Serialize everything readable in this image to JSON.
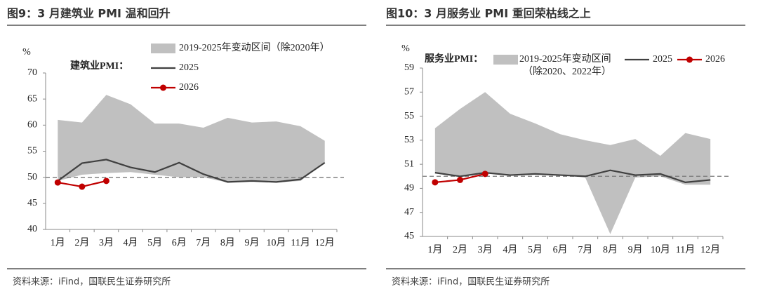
{
  "chart_data": [
    {
      "type": "range_line",
      "title": "图9：3 月建筑业 PMI 温和回升",
      "y_unit": "%",
      "series_label": "建筑业PMI：",
      "categories": [
        "1月",
        "2月",
        "3月",
        "4月",
        "5月",
        "6月",
        "7月",
        "8月",
        "9月",
        "10月",
        "11月",
        "12月"
      ],
      "band": {
        "name": "2019-2025年变动区间（除2020年）",
        "color": "#c0c0c0",
        "high": [
          61,
          60.5,
          65.8,
          64,
          60.3,
          60.3,
          59.5,
          61.4,
          60.5,
          60.7,
          59.8,
          57
        ],
        "low": [
          49.3,
          50.5,
          50.8,
          51,
          50.5,
          50,
          50,
          49,
          49.2,
          49,
          49.3,
          52.8
        ]
      },
      "series": [
        {
          "name": "2025",
          "color": "#404040",
          "values": [
            49.3,
            52.7,
            53.4,
            51.9,
            51,
            52.8,
            50.6,
            49.1,
            49.3,
            49.1,
            49.6,
            52.8
          ]
        },
        {
          "name": "2026",
          "color": "#c00000",
          "values": [
            49,
            48.2,
            49.3,
            null,
            null,
            null,
            null,
            null,
            null,
            null,
            null,
            null
          ]
        }
      ],
      "ref_line": 50,
      "ylim": [
        40,
        70
      ],
      "yticks": [
        40,
        45,
        50,
        55,
        60,
        65,
        70
      ],
      "source": "资料来源：iFind，国联民生证券研究所"
    },
    {
      "type": "range_line",
      "title": "图10：3 月服务业 PMI 重回荣枯线之上",
      "y_unit": "%",
      "series_label": "服务业PMI：",
      "categories": [
        "1月",
        "2月",
        "3月",
        "4月",
        "5月",
        "6月",
        "7月",
        "8月",
        "9月",
        "10月",
        "11月",
        "12月"
      ],
      "band": {
        "name": "2019-2025年变动区间",
        "name_note": "（除2020、2022年）",
        "color": "#c0c0c0",
        "high": [
          54,
          55.6,
          57,
          55.2,
          54.4,
          53.5,
          53,
          52.6,
          53.1,
          51.7,
          53.6,
          53.1
        ],
        "low": [
          50.3,
          50,
          50.3,
          50.1,
          50.2,
          50.1,
          49.9,
          45.2,
          49.9,
          50,
          49.3,
          49.3
        ]
      },
      "series": [
        {
          "name": "2025",
          "color": "#404040",
          "values": [
            50.3,
            50,
            50.3,
            50.1,
            50.2,
            50.1,
            50,
            50.5,
            50.1,
            50.2,
            49.5,
            49.7
          ]
        },
        {
          "name": "2026",
          "color": "#c00000",
          "values": [
            49.5,
            49.7,
            50.2,
            null,
            null,
            null,
            null,
            null,
            null,
            null,
            null,
            null
          ]
        }
      ],
      "ref_line": 50,
      "ylim": [
        45,
        59
      ],
      "yticks": [
        45,
        47,
        49,
        51,
        53,
        55,
        57,
        59
      ],
      "source": "资料来源：iFind，国联民生证券研究所"
    }
  ]
}
